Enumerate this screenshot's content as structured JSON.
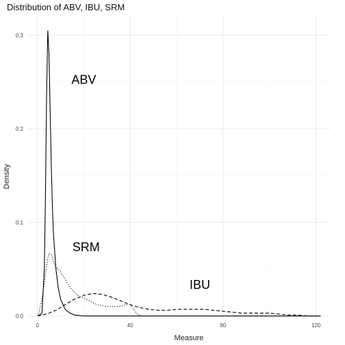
{
  "chart_data": {
    "type": "line",
    "title": "Distribution of ABV, IBU, SRM",
    "xlabel": "Measure",
    "ylabel": "Density",
    "xlim": [
      -4,
      126
    ],
    "ylim": [
      -0.004,
      0.32
    ],
    "x_ticks": [
      0,
      40,
      80,
      120
    ],
    "x_tick_labels": [
      "0",
      "40",
      "80",
      "120"
    ],
    "y_ticks": [
      0,
      0.1,
      0.2,
      0.3
    ],
    "y_tick_labels": [
      "0.0",
      "0.1",
      "0.2",
      "0.3"
    ],
    "grid": true,
    "annotations": [
      {
        "text": "ABV",
        "x": 20,
        "y": 0.248
      },
      {
        "text": "SRM",
        "x": 21,
        "y": 0.069
      },
      {
        "text": "IBU",
        "x": 70,
        "y": 0.029
      }
    ],
    "series": [
      {
        "linestyle": "solid",
        "x": [
          0.2,
          2,
          3,
          3.5,
          4,
          4.5,
          5,
          5.5,
          6,
          6.5,
          7,
          8,
          9,
          10,
          12,
          14,
          16,
          20,
          30,
          40,
          60,
          80,
          100,
          122
        ],
        "y": [
          0.0,
          0.003,
          0.05,
          0.13,
          0.24,
          0.305,
          0.28,
          0.22,
          0.16,
          0.115,
          0.085,
          0.05,
          0.03,
          0.018,
          0.007,
          0.003,
          0.001,
          0.0,
          0.0,
          0.0,
          0.0,
          0.0,
          0.0,
          0.0
        ]
      },
      {
        "linestyle": "dotted",
        "x": [
          0.2,
          1,
          2,
          3,
          4,
          5,
          6,
          7,
          8,
          9,
          10,
          11,
          12,
          14,
          16,
          18,
          20,
          22,
          24,
          26,
          28,
          30,
          32,
          35,
          38,
          40,
          41,
          42,
          43,
          45,
          50,
          60,
          80,
          100,
          122
        ],
        "y": [
          0.0,
          0.007,
          0.018,
          0.035,
          0.055,
          0.067,
          0.066,
          0.058,
          0.052,
          0.05,
          0.047,
          0.043,
          0.039,
          0.031,
          0.025,
          0.021,
          0.019,
          0.017,
          0.014,
          0.012,
          0.011,
          0.01,
          0.01,
          0.01,
          0.012,
          0.012,
          0.009,
          0.005,
          0.002,
          0.0,
          0.0,
          0.0,
          0.0,
          0.0,
          0.0
        ]
      },
      {
        "linestyle": "dashed",
        "x": [
          0.2,
          4,
          8,
          12,
          16,
          20,
          24,
          28,
          32,
          36,
          40,
          44,
          48,
          52,
          56,
          60,
          64,
          68,
          72,
          76,
          80,
          84,
          88,
          92,
          96,
          100,
          104,
          108,
          112,
          116,
          120,
          122
        ],
        "y": [
          0.0,
          0.002,
          0.006,
          0.012,
          0.018,
          0.022,
          0.024,
          0.023,
          0.02,
          0.016,
          0.012,
          0.009,
          0.007,
          0.006,
          0.006,
          0.007,
          0.007,
          0.007,
          0.007,
          0.006,
          0.005,
          0.004,
          0.003,
          0.003,
          0.003,
          0.003,
          0.002,
          0.001,
          0.001,
          0.0,
          0.0,
          0.0
        ]
      }
    ]
  }
}
